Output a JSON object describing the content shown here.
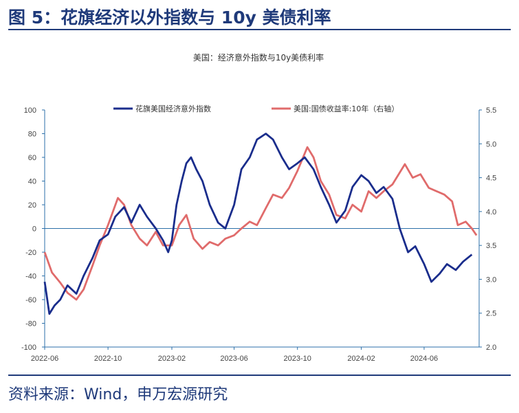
{
  "figure": {
    "title": "图 5：花旗经济以外指数与 10y 美债利率",
    "source": "资料来源：Wind，申万宏源研究"
  },
  "colors": {
    "citi": "#1a2d8c",
    "yield": "#e06b6b",
    "axis": "#2b6fa8",
    "text": "#1f3a7a"
  },
  "chart_data": {
    "type": "line",
    "title": "美国：经济意外指数与10y美债利率",
    "legend_placement": "top",
    "grid": false,
    "x_ticks": [
      "2022-06",
      "2022-10",
      "2023-02",
      "2023-06",
      "2023-10",
      "2024-02",
      "2024-06"
    ],
    "x_range": [
      "2022-06",
      "2024-09"
    ],
    "y_left": {
      "ticks": [
        100,
        80,
        60,
        40,
        20,
        0,
        -20,
        -40,
        -60,
        -80,
        -100
      ],
      "range": [
        -100,
        100
      ]
    },
    "y_right": {
      "ticks": [
        "5.5",
        "5.0",
        "4.5",
        "4.0",
        "3.5",
        "3.0",
        "2.5",
        "2.0"
      ],
      "range": [
        2.0,
        5.5
      ]
    },
    "series": [
      {
        "name": "花旗美国经济意外指数",
        "axis": "left",
        "points": [
          [
            "2022-06-01",
            -45
          ],
          [
            "2022-06-10",
            -72
          ],
          [
            "2022-06-20",
            -65
          ],
          [
            "2022-07-01",
            -60
          ],
          [
            "2022-07-15",
            -48
          ],
          [
            "2022-08-01",
            -55
          ],
          [
            "2022-08-15",
            -40
          ],
          [
            "2022-09-01",
            -25
          ],
          [
            "2022-09-15",
            -10
          ],
          [
            "2022-10-01",
            -5
          ],
          [
            "2022-10-15",
            10
          ],
          [
            "2022-11-01",
            18
          ],
          [
            "2022-11-15",
            5
          ],
          [
            "2022-12-01",
            20
          ],
          [
            "2022-12-15",
            10
          ],
          [
            "2023-01-01",
            0
          ],
          [
            "2023-01-15",
            -10
          ],
          [
            "2023-01-25",
            -20
          ],
          [
            "2023-02-01",
            -10
          ],
          [
            "2023-02-10",
            20
          ],
          [
            "2023-02-20",
            40
          ],
          [
            "2023-03-01",
            55
          ],
          [
            "2023-03-10",
            60
          ],
          [
            "2023-03-20",
            50
          ],
          [
            "2023-04-01",
            40
          ],
          [
            "2023-04-15",
            20
          ],
          [
            "2023-05-01",
            5
          ],
          [
            "2023-05-15",
            0
          ],
          [
            "2023-06-01",
            20
          ],
          [
            "2023-06-15",
            50
          ],
          [
            "2023-07-01",
            60
          ],
          [
            "2023-07-15",
            75
          ],
          [
            "2023-08-01",
            80
          ],
          [
            "2023-08-15",
            75
          ],
          [
            "2023-09-01",
            60
          ],
          [
            "2023-09-15",
            50
          ],
          [
            "2023-10-01",
            55
          ],
          [
            "2023-10-15",
            60
          ],
          [
            "2023-11-01",
            50
          ],
          [
            "2023-11-15",
            35
          ],
          [
            "2023-12-01",
            20
          ],
          [
            "2023-12-15",
            5
          ],
          [
            "2024-01-01",
            15
          ],
          [
            "2024-01-15",
            35
          ],
          [
            "2024-02-01",
            45
          ],
          [
            "2024-02-15",
            40
          ],
          [
            "2024-03-01",
            30
          ],
          [
            "2024-03-15",
            35
          ],
          [
            "2024-04-01",
            25
          ],
          [
            "2024-04-15",
            0
          ],
          [
            "2024-05-01",
            -20
          ],
          [
            "2024-05-15",
            -15
          ],
          [
            "2024-06-01",
            -30
          ],
          [
            "2024-06-15",
            -45
          ],
          [
            "2024-07-01",
            -38
          ],
          [
            "2024-07-15",
            -30
          ],
          [
            "2024-08-01",
            -35
          ],
          [
            "2024-08-15",
            -28
          ],
          [
            "2024-09-01",
            -22
          ]
        ]
      },
      {
        "name": "美国:国债收益率:10年（右轴）",
        "axis": "right",
        "points": [
          [
            "2022-06-01",
            3.4
          ],
          [
            "2022-06-15",
            3.1
          ],
          [
            "2022-07-01",
            2.95
          ],
          [
            "2022-07-15",
            2.8
          ],
          [
            "2022-08-01",
            2.7
          ],
          [
            "2022-08-15",
            2.85
          ],
          [
            "2022-09-01",
            3.2
          ],
          [
            "2022-09-15",
            3.5
          ],
          [
            "2022-10-01",
            3.8
          ],
          [
            "2022-10-20",
            4.2
          ],
          [
            "2022-11-01",
            4.1
          ],
          [
            "2022-11-15",
            3.8
          ],
          [
            "2022-12-01",
            3.6
          ],
          [
            "2022-12-15",
            3.5
          ],
          [
            "2023-01-01",
            3.7
          ],
          [
            "2023-01-15",
            3.5
          ],
          [
            "2023-02-01",
            3.5
          ],
          [
            "2023-02-15",
            3.8
          ],
          [
            "2023-03-01",
            3.95
          ],
          [
            "2023-03-15",
            3.6
          ],
          [
            "2023-04-01",
            3.45
          ],
          [
            "2023-04-15",
            3.55
          ],
          [
            "2023-05-01",
            3.5
          ],
          [
            "2023-05-15",
            3.6
          ],
          [
            "2023-06-01",
            3.65
          ],
          [
            "2023-06-15",
            3.75
          ],
          [
            "2023-07-01",
            3.85
          ],
          [
            "2023-07-15",
            3.8
          ],
          [
            "2023-08-01",
            4.05
          ],
          [
            "2023-08-15",
            4.25
          ],
          [
            "2023-09-01",
            4.2
          ],
          [
            "2023-09-15",
            4.35
          ],
          [
            "2023-10-01",
            4.6
          ],
          [
            "2023-10-20",
            4.95
          ],
          [
            "2023-11-01",
            4.8
          ],
          [
            "2023-11-15",
            4.45
          ],
          [
            "2023-12-01",
            4.25
          ],
          [
            "2023-12-15",
            3.95
          ],
          [
            "2024-01-01",
            3.9
          ],
          [
            "2024-01-15",
            4.1
          ],
          [
            "2024-02-01",
            4.0
          ],
          [
            "2024-02-15",
            4.3
          ],
          [
            "2024-03-01",
            4.2
          ],
          [
            "2024-03-15",
            4.3
          ],
          [
            "2024-04-01",
            4.4
          ],
          [
            "2024-04-25",
            4.7
          ],
          [
            "2024-05-10",
            4.5
          ],
          [
            "2024-05-25",
            4.55
          ],
          [
            "2024-06-10",
            4.35
          ],
          [
            "2024-06-25",
            4.3
          ],
          [
            "2024-07-10",
            4.25
          ],
          [
            "2024-07-25",
            4.15
          ],
          [
            "2024-08-05",
            3.8
          ],
          [
            "2024-08-20",
            3.85
          ],
          [
            "2024-09-01",
            3.75
          ],
          [
            "2024-09-10",
            3.65
          ]
        ]
      }
    ]
  }
}
